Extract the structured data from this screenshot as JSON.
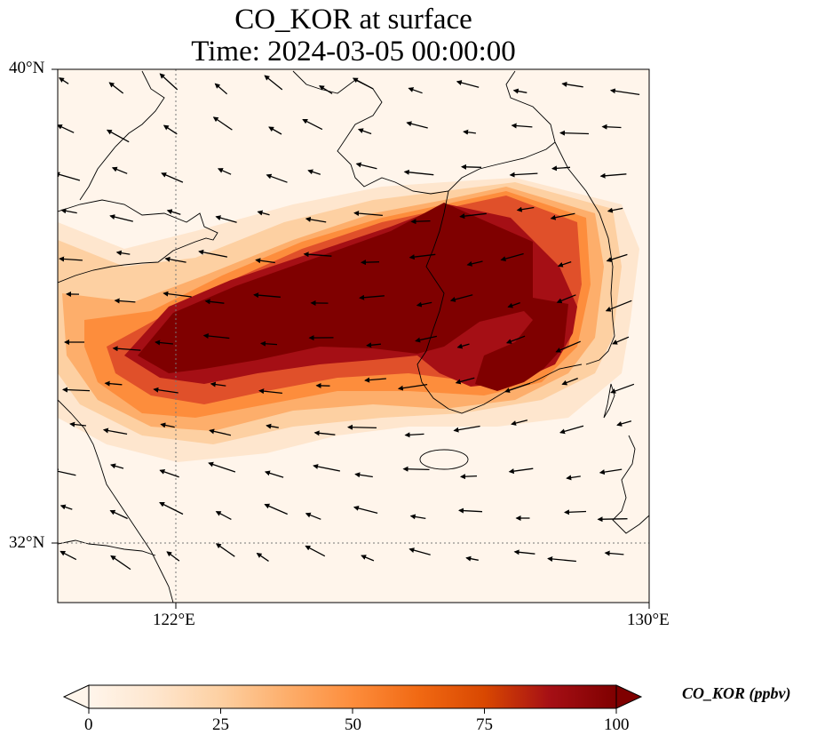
{
  "title": {
    "line1": "CO_KOR at surface",
    "line2": "Time: 2024-03-05 00:00:00"
  },
  "map": {
    "extent": {
      "lon_min": 119.6,
      "lon_max": 130.0,
      "lat_min": 31.0,
      "lat_max": 40.0
    },
    "lat_ticks": [
      {
        "lat": 40,
        "label": "40°N"
      },
      {
        "lat": 32,
        "label": "32°N"
      }
    ],
    "lon_ticks": [
      {
        "lon": 122,
        "label": "122°E"
      },
      {
        "lon": 130,
        "label": "130°E"
      }
    ],
    "gridlines": {
      "lons": [
        122
      ],
      "lats": [
        32
      ],
      "style": "dotted"
    },
    "plume_core_axis": [
      [
        121.3,
        34.9
      ],
      [
        122.2,
        35.5
      ],
      [
        123.5,
        36.1
      ],
      [
        125.0,
        36.6
      ],
      [
        126.3,
        37.1
      ],
      [
        127.0,
        37.4
      ]
    ]
  },
  "colorbar": {
    "label": "CO_KOR (ppbv)",
    "min": 0,
    "max": 100,
    "extend": "both",
    "ticks": [
      "0",
      "25",
      "50",
      "75",
      "100"
    ],
    "colors": [
      "#fff5eb",
      "#fee6ce",
      "#fdd0a2",
      "#fdae6b",
      "#fd8d3c",
      "#f16913",
      "#d94801",
      "#a50f15",
      "#7f0000"
    ]
  }
}
